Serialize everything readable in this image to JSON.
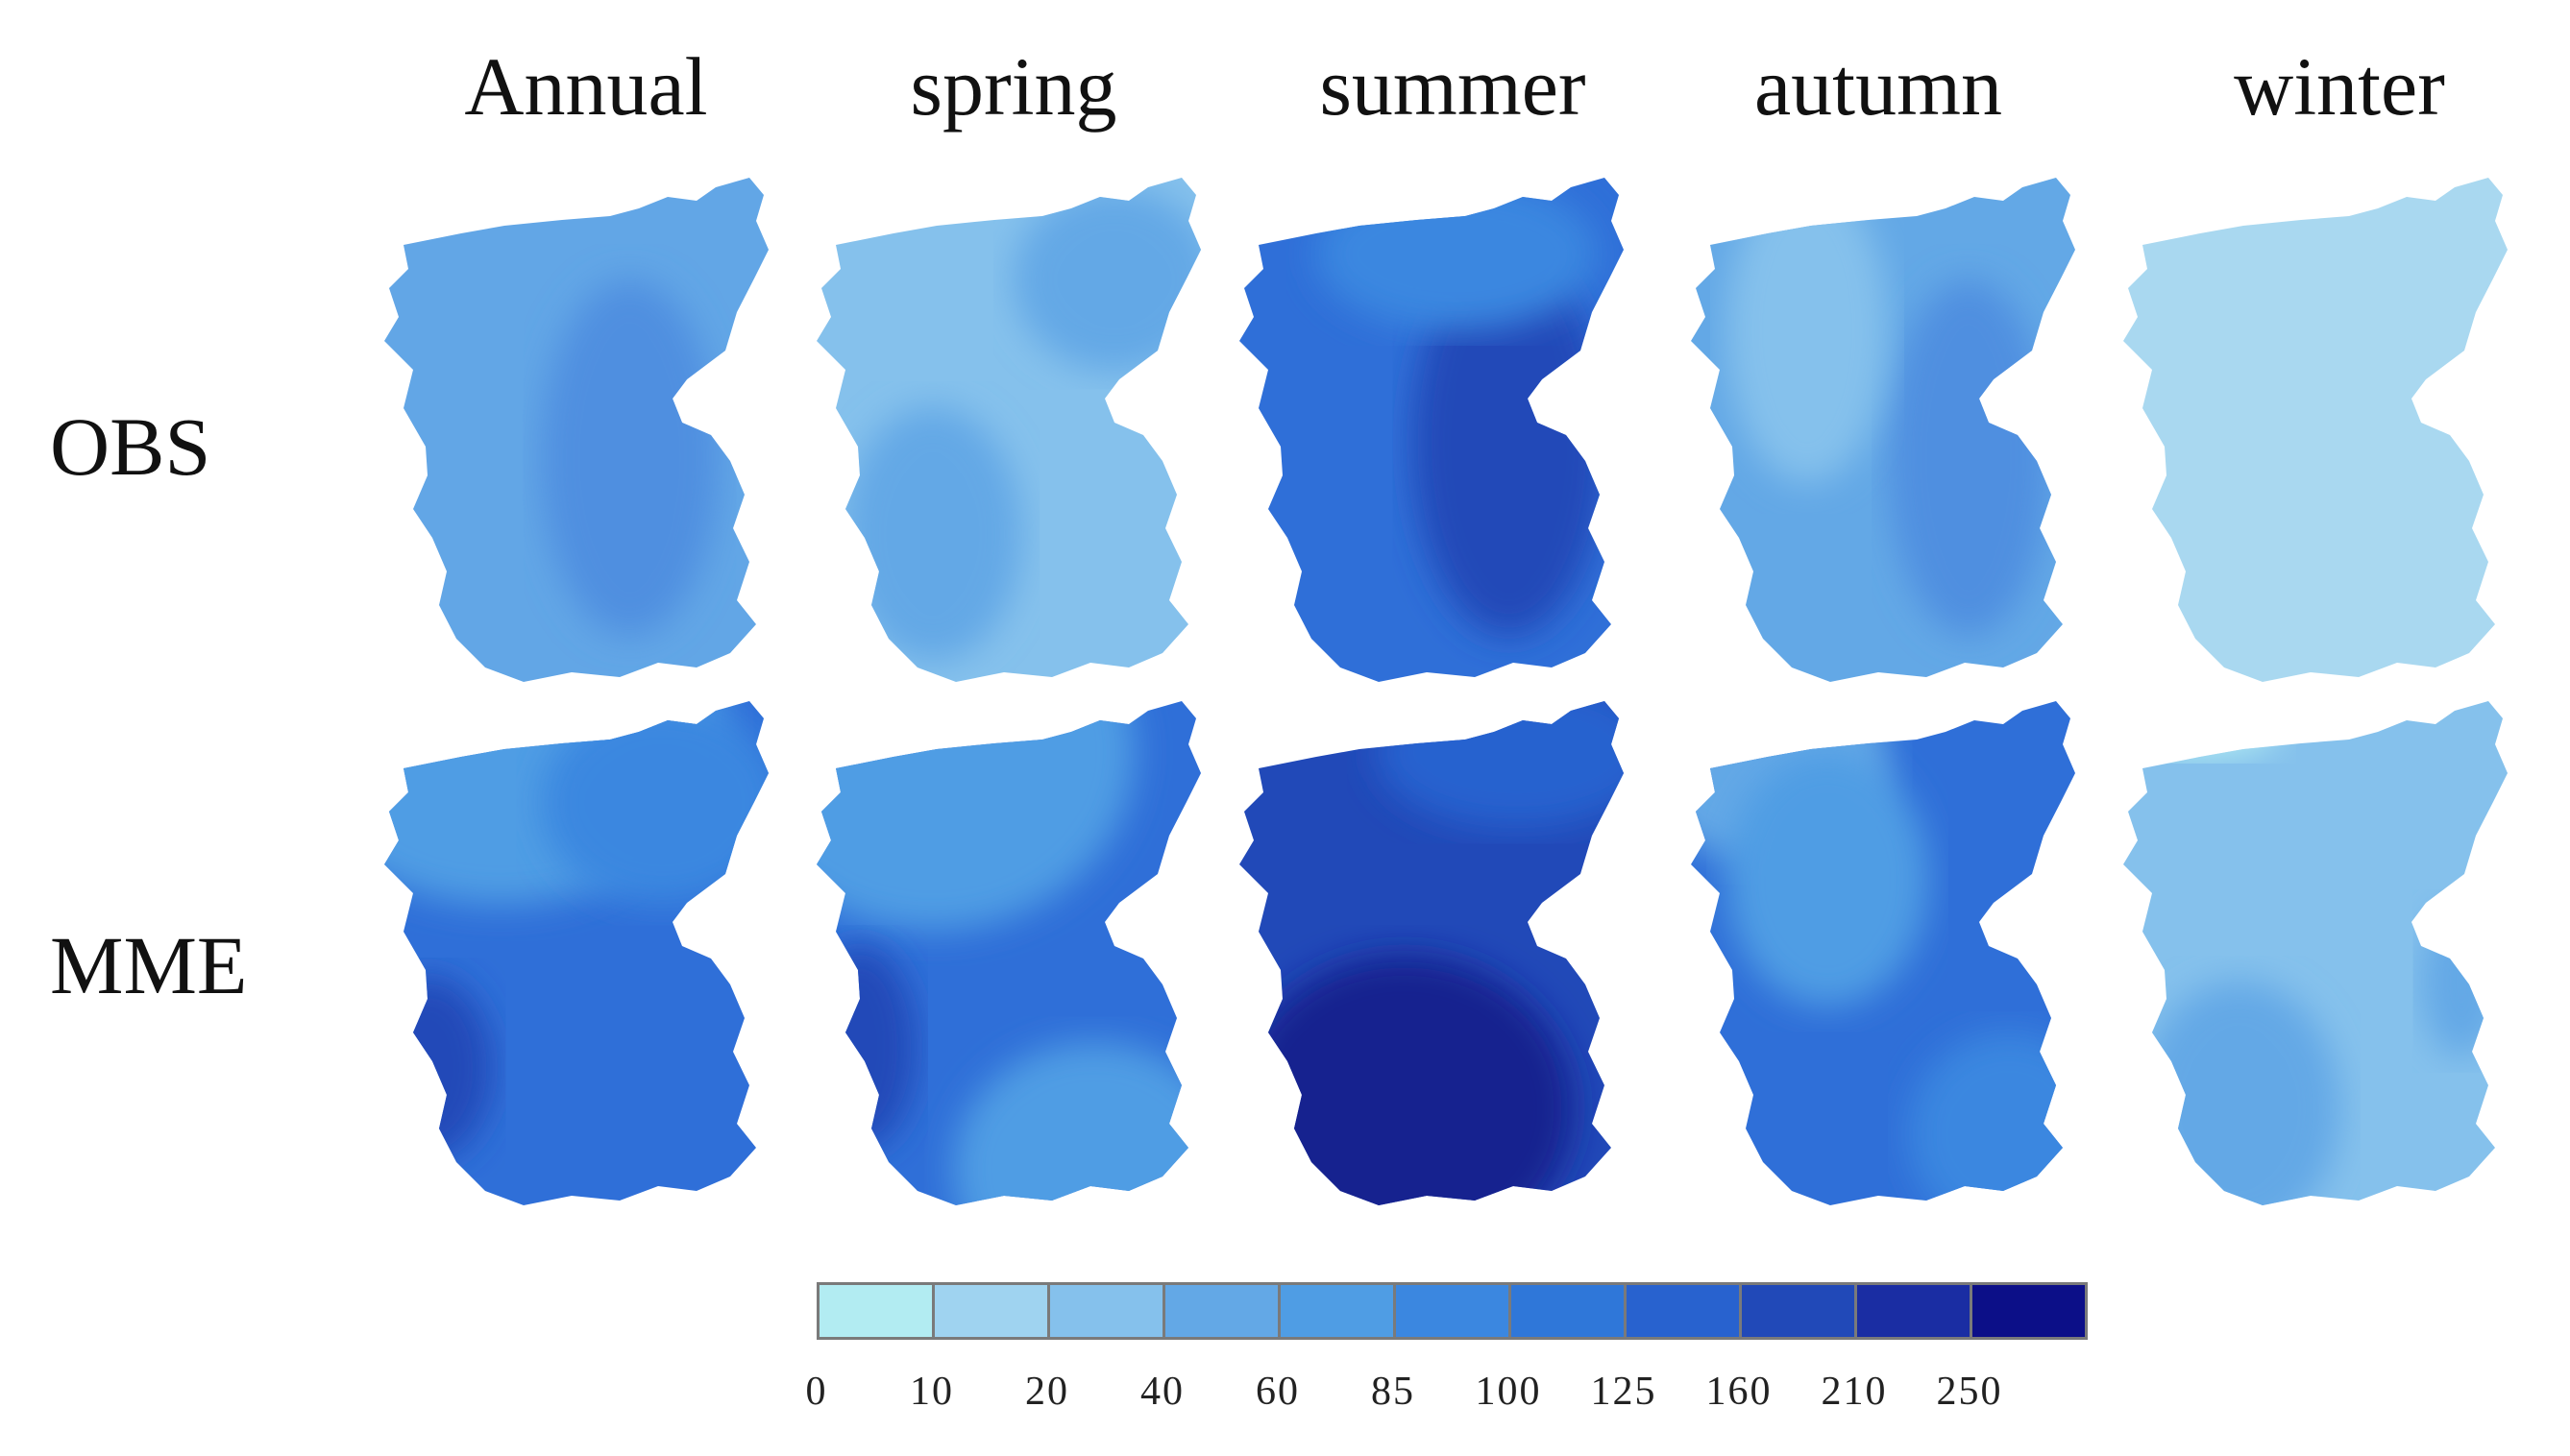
{
  "columns": [
    "Annual",
    "spring",
    "summer",
    "autumn",
    "winter"
  ],
  "rows": [
    "OBS",
    "MME"
  ],
  "colors": {
    "c10": "#a9d8f0",
    "c20": "#85c1ec",
    "c40": "#63a8e6",
    "c60": "#4f9de4",
    "c85": "#3b87e0",
    "c100": "#2f77d9",
    "c125": "#2862cf",
    "c160": "#2149b8",
    "c210": "#1a2da3",
    "c250": "#10168a"
  },
  "legend": {
    "bin_colors": [
      "#b2ecf2",
      "#9fd3f0",
      "#85c1ec",
      "#63a8e6",
      "#4f9de4",
      "#3b87e0",
      "#2f77d9",
      "#2862cf",
      "#2149b8",
      "#1a2da3",
      "#0c0f88"
    ],
    "tick_labels": [
      "0",
      "10",
      "20",
      "40",
      "60",
      "85",
      "100",
      "125",
      "160",
      "210",
      "250"
    ]
  },
  "maps": [
    {
      "row": "OBS",
      "col": "Annual",
      "base": "#62a6e6",
      "zones": [
        [
          "#4f8fe0",
          0.62,
          0.55,
          0.22,
          0.35
        ]
      ]
    },
    {
      "row": "OBS",
      "col": "spring",
      "base": "#85c1ec",
      "zones": [
        [
          "#63a8e6",
          0.75,
          0.2,
          0.25,
          0.18
        ],
        [
          "#63a8e6",
          0.3,
          0.7,
          0.22,
          0.25
        ]
      ]
    },
    {
      "row": "OBS",
      "col": "summer",
      "base": "#2f6fd8",
      "zones": [
        [
          "#2149b8",
          0.68,
          0.52,
          0.24,
          0.38
        ],
        [
          "#3b87e0",
          0.55,
          0.15,
          0.35,
          0.15
        ]
      ]
    },
    {
      "row": "OBS",
      "col": "autumn",
      "base": "#63a8e6",
      "zones": [
        [
          "#4f8fe0",
          0.7,
          0.55,
          0.2,
          0.35
        ],
        [
          "#85c1ec",
          0.3,
          0.3,
          0.2,
          0.3
        ]
      ]
    },
    {
      "row": "OBS",
      "col": "winter",
      "base": "#a9d8f0",
      "zones": []
    },
    {
      "row": "MME",
      "col": "Annual",
      "base": "#2f6fd8",
      "zones": [
        [
          "#4f9de4",
          0.3,
          0.05,
          0.55,
          0.35
        ],
        [
          "#3b87e0",
          0.7,
          0.2,
          0.3,
          0.2
        ],
        [
          "#2149b8",
          0.12,
          0.72,
          0.16,
          0.18
        ]
      ]
    },
    {
      "row": "MME",
      "col": "spring",
      "base": "#2f6fd8",
      "zones": [
        [
          "#4f9de4",
          0.3,
          0.1,
          0.5,
          0.35
        ],
        [
          "#4f9de4",
          0.7,
          0.92,
          0.35,
          0.25
        ],
        [
          "#2149b8",
          0.12,
          0.68,
          0.14,
          0.2
        ]
      ]
    },
    {
      "row": "MME",
      "col": "summer",
      "base": "#2149b8",
      "zones": [
        [
          "#13208f",
          0.42,
          0.8,
          0.42,
          0.3
        ],
        [
          "#2862cf",
          0.7,
          0.1,
          0.35,
          0.15
        ]
      ]
    },
    {
      "row": "MME",
      "col": "autumn",
      "base": "#2f6fd8",
      "zones": [
        [
          "#63a8e6",
          0.2,
          0.12,
          0.3,
          0.2
        ],
        [
          "#4f9de4",
          0.35,
          0.35,
          0.25,
          0.25
        ],
        [
          "#3b87e0",
          0.8,
          0.85,
          0.25,
          0.2
        ]
      ]
    },
    {
      "row": "MME",
      "col": "winter",
      "base": "#85c1ec",
      "zones": [
        [
          "#b2ecf2",
          0.2,
          0.05,
          0.2,
          0.06
        ],
        [
          "#63a8e6",
          0.3,
          0.8,
          0.25,
          0.25
        ],
        [
          "#63a8e6",
          0.85,
          0.55,
          0.1,
          0.15
        ]
      ]
    }
  ]
}
